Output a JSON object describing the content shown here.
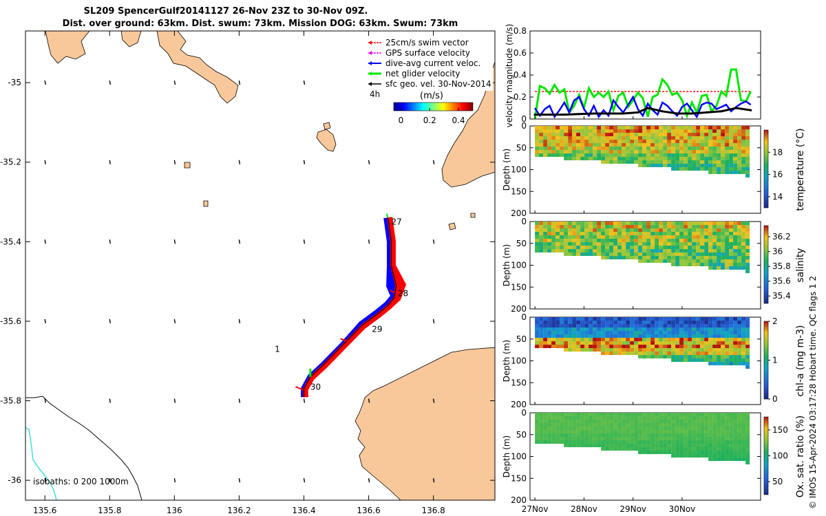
{
  "title_line1": "SL209 SpencerGulf20141127 26-Nov 23Z to 30-Nov 09Z.",
  "title_line2": "Dist. over ground: 63km. Dist. swum: 73km. Mission DOG: 63km. Swum: 73km",
  "colors": {
    "land": "#f9c89a",
    "swim": "#ff0000",
    "gps": "#e600e6",
    "current": "#0000ff",
    "glider": "#00e600",
    "geo": "#000000",
    "isobath200": "#40e0d0"
  },
  "map": {
    "xlim": [
      135.54,
      136.99
    ],
    "ylim": [
      -36.05,
      -34.87
    ],
    "xticks": [
      135.6,
      135.8,
      136,
      136.2,
      136.4,
      136.6,
      136.8
    ],
    "xtick_labels": [
      "135.6",
      "135.8",
      "136",
      "136.2",
      "136.4",
      "136.6",
      "136.8"
    ],
    "yticks": [
      -35.0,
      -35.2,
      -35.4,
      -35.6,
      -35.8,
      -36.0
    ],
    "ytick_labels": [
      "-35",
      "-35.2",
      "-35.4",
      "-35.6",
      "-35.8",
      "-36"
    ],
    "legend": [
      {
        "key": "swim",
        "label": "25cm/s swim vector"
      },
      {
        "key": "gps",
        "label": "GPS surface velocity"
      },
      {
        "key": "current",
        "label": "dive-avg current veloc."
      },
      {
        "key": "glider",
        "label": "net glider velocity"
      },
      {
        "key": "geo",
        "label": "sfc geo. vel. 30-Nov-2014"
      }
    ],
    "legend_note": "4h",
    "colorbar_label": "(m/s)",
    "colorbar_ticks": [
      0,
      0.2,
      0.4
    ],
    "colorbar_tick_labels": [
      "0",
      "0.2",
      "0.4"
    ],
    "colorbar_range": [
      -0.05,
      0.5
    ],
    "isobath_text": "isobaths: 0   200  1000m",
    "day_labels": [
      {
        "text": "27",
        "lon": 136.67,
        "lat": -35.35
      },
      {
        "text": "28",
        "lon": 136.69,
        "lat": -35.53
      },
      {
        "text": "29",
        "lon": 136.61,
        "lat": -35.62
      },
      {
        "text": "30",
        "lon": 136.42,
        "lat": -35.765
      },
      {
        "text": "1",
        "lon": 136.31,
        "lat": -35.67
      }
    ],
    "track": [
      [
        136.66,
        -35.34
      ],
      [
        136.67,
        -35.4
      ],
      [
        136.67,
        -35.46
      ],
      [
        136.685,
        -35.51
      ],
      [
        136.68,
        -35.54
      ],
      [
        136.66,
        -35.56
      ],
      [
        136.63,
        -35.58
      ],
      [
        136.58,
        -35.61
      ],
      [
        136.52,
        -35.66
      ],
      [
        136.46,
        -35.71
      ],
      [
        136.42,
        -35.74
      ],
      [
        136.4,
        -35.77
      ],
      [
        136.4,
        -35.79
      ]
    ]
  },
  "velocity_panel": {
    "ylabel": "velocity magnitude (m/s)",
    "ylim": [
      0,
      0.8
    ],
    "yticks": [
      0,
      0.2,
      0.4,
      0.6,
      0.8
    ],
    "ytick_labels": [
      "0",
      "0.2",
      "0.4",
      "0.6",
      "0.8"
    ],
    "xlim": [
      26.9,
      31.6
    ],
    "series": [
      {
        "name": "25cm/s swim vector",
        "key": "swim",
        "x": [
          27.0,
          31.4
        ],
        "y": [
          0.25,
          0.25
        ]
      },
      {
        "name": "net glider velocity",
        "key": "glider",
        "x": [
          27.0,
          27.1,
          27.2,
          27.3,
          27.4,
          27.5,
          27.6,
          27.7,
          27.8,
          27.9,
          28.0,
          28.1,
          28.2,
          28.3,
          28.4,
          28.5,
          28.6,
          28.7,
          28.8,
          28.9,
          29.0,
          29.1,
          29.2,
          29.3,
          29.4,
          29.5,
          29.6,
          29.7,
          29.8,
          29.9,
          30.0,
          30.1,
          30.2,
          30.3,
          30.4,
          30.5,
          30.6,
          30.7,
          30.8,
          30.9,
          31.0,
          31.1,
          31.2,
          31.3,
          31.4
        ],
        "y": [
          0.0,
          0.3,
          0.28,
          0.23,
          0.31,
          0.24,
          0.27,
          0.06,
          0.12,
          0.22,
          0.1,
          0.28,
          0.2,
          0.24,
          0.2,
          0.25,
          0.08,
          0.21,
          0.24,
          0.11,
          0.17,
          0.24,
          0.19,
          0.02,
          0.2,
          0.22,
          0.36,
          0.31,
          0.22,
          0.24,
          0.17,
          0.03,
          0.15,
          0.06,
          0.21,
          0.22,
          0.07,
          0.12,
          0.25,
          0.21,
          0.45,
          0.45,
          0.17,
          0.16,
          0.25
        ]
      },
      {
        "name": "dive-avg current veloc.",
        "key": "current",
        "x": [
          27.0,
          27.1,
          27.2,
          27.3,
          27.4,
          27.5,
          27.6,
          27.7,
          27.8,
          27.9,
          28.0,
          28.1,
          28.2,
          28.3,
          28.4,
          28.5,
          28.6,
          28.7,
          28.8,
          28.9,
          29.0,
          29.1,
          29.2,
          29.3,
          29.4,
          29.5,
          29.6,
          29.7,
          29.8,
          29.9,
          30.0,
          30.1,
          30.2,
          30.3,
          30.4,
          30.5,
          30.6,
          30.7,
          30.8,
          30.9,
          31.0,
          31.1,
          31.2,
          31.3,
          31.4
        ],
        "y": [
          0.1,
          0.03,
          0.09,
          0.12,
          0.02,
          0.08,
          0.15,
          0.06,
          0.17,
          0.2,
          0.09,
          0.03,
          0.12,
          0.02,
          0.08,
          0.03,
          0.17,
          0.11,
          0.06,
          0.13,
          0.2,
          0.09,
          0.03,
          0.14,
          0.08,
          0.04,
          0.15,
          0.12,
          0.07,
          0.03,
          0.11,
          0.14,
          0.08,
          0.02,
          0.13,
          0.15,
          0.14,
          0.09,
          0.11,
          0.13,
          0.07,
          0.11,
          0.14,
          0.16,
          0.13
        ]
      },
      {
        "name": "sfc geo. vel. 30-Nov-2014",
        "key": "geo",
        "x": [
          27.0,
          27.3,
          27.6,
          27.9,
          28.2,
          28.5,
          28.8,
          29.1,
          29.3,
          29.6,
          29.9,
          30.2,
          30.5,
          30.8,
          31.1,
          31.4
        ],
        "y": [
          0.04,
          0.04,
          0.04,
          0.045,
          0.05,
          0.05,
          0.05,
          0.06,
          0.1,
          0.07,
          0.05,
          0.05,
          0.06,
          0.07,
          0.1,
          0.08
        ]
      }
    ]
  },
  "sections": [
    {
      "id": "temp",
      "colorbar_label": "temperature (°C)",
      "cmin": 13,
      "cmax": 20,
      "cticks": [
        14,
        16,
        18
      ],
      "ctick_labels": [
        "14",
        "16",
        "18"
      ],
      "mean_profile": [
        19.0,
        18.7,
        18.3,
        17.6,
        17.0,
        16.8,
        16.6
      ],
      "variability": 1.1
    },
    {
      "id": "sal",
      "colorbar_label": "salinity",
      "cmin": 35.3,
      "cmax": 36.35,
      "cticks": [
        35.4,
        35.6,
        35.8,
        36,
        36.2
      ],
      "ctick_labels": [
        "35.4",
        "35.6",
        "35.8",
        "36",
        "36.2"
      ],
      "mean_profile": [
        36.1,
        36.05,
        36.0,
        35.95,
        35.95,
        35.9,
        35.9
      ],
      "variability": 0.2
    },
    {
      "id": "chl",
      "colorbar_label": "chl-a (mg m-3)",
      "cmin": 0,
      "cmax": 2,
      "cticks": [
        0,
        1,
        2
      ],
      "ctick_labels": [
        "0",
        "1",
        "2"
      ],
      "mean_profile": [
        0.3,
        0.7,
        1.4,
        1.6,
        1.1,
        0.8,
        0.7
      ],
      "variability": 0.25
    },
    {
      "id": "oxy",
      "colorbar_label": "Ox. sat. ratio (%)",
      "cmin": 25,
      "cmax": 175,
      "cticks": [
        50,
        100,
        150
      ],
      "ctick_labels": [
        "50",
        "100",
        "150"
      ],
      "mean_profile": [
        118,
        118,
        116,
        113,
        110,
        108,
        106
      ],
      "variability": 3
    }
  ],
  "section_depth": {
    "ylabel": "Depth (m)",
    "ylim": [
      0,
      200
    ],
    "yticks": [
      0,
      50,
      100,
      150,
      200
    ],
    "ytick_labels": [
      "0",
      "50",
      "100",
      "150",
      "200"
    ],
    "bottom_start": 65,
    "bottom_end": 112
  },
  "time_axis": {
    "ticks": [
      27,
      28,
      29,
      30
    ],
    "tick_labels": [
      "27Nov",
      "28Nov",
      "29Nov",
      "30Nov"
    ]
  },
  "credit": "© IMOS 15-Apr-2024 03:17:28 Hobart time. QC flags 1  2"
}
